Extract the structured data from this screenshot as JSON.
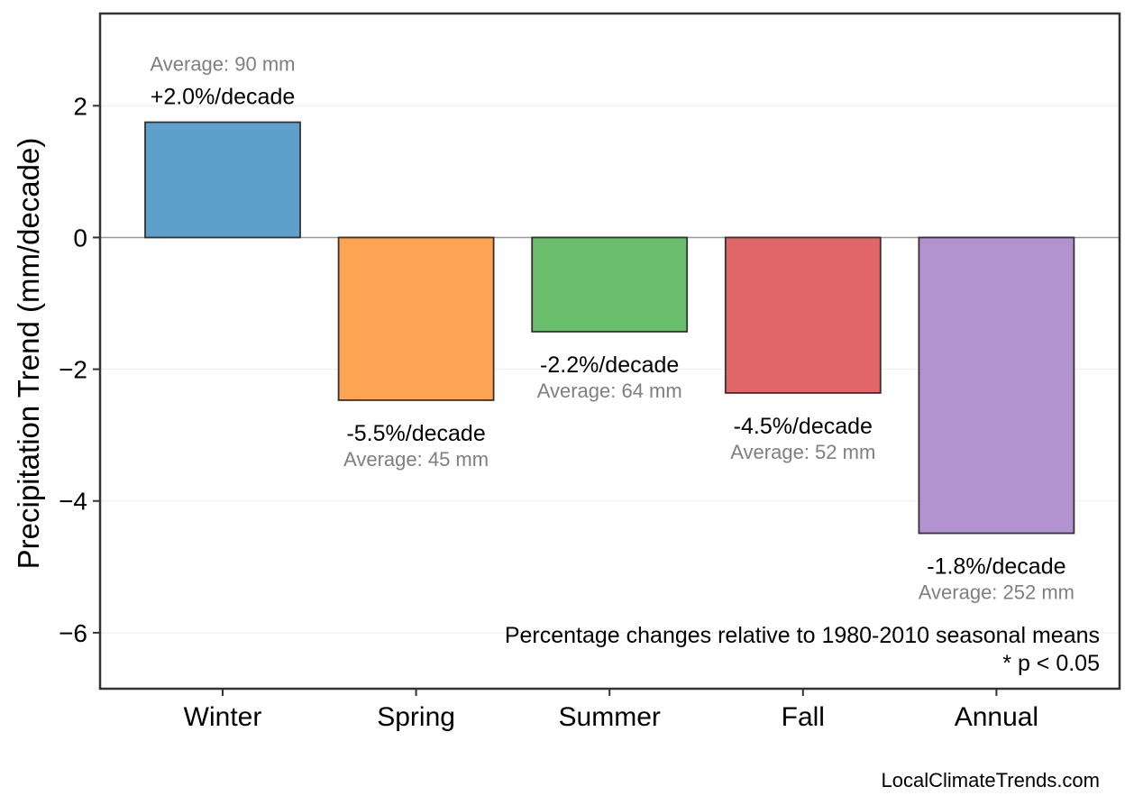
{
  "chart_data": {
    "type": "bar",
    "title": "",
    "xlabel": "",
    "ylabel": "Precipitation Trend (mm/decade)",
    "ylim": [
      -6.85,
      3.4
    ],
    "yticks": [
      2,
      0,
      -2,
      -4,
      -6
    ],
    "ytick_labels": [
      "2",
      "0",
      "−2",
      "−4",
      "−6"
    ],
    "grid": "horizontal, faint",
    "categories": [
      "Winter",
      "Spring",
      "Summer",
      "Fall",
      "Annual"
    ],
    "values": [
      1.75,
      -2.47,
      -1.43,
      -2.36,
      -4.49
    ],
    "colors": [
      "#5f9fcc",
      "#fea555",
      "#6abd6a",
      "#e06668",
      "#b293cf"
    ],
    "pct_labels": [
      "+2.0%/decade",
      "-5.5%/decade",
      "-2.2%/decade",
      "-4.5%/decade",
      "-1.8%/decade"
    ],
    "avg_labels": [
      "Average: 90 mm",
      "Average: 45 mm",
      "Average: 64 mm",
      "Average: 52 mm",
      "Average: 252 mm"
    ],
    "annotations": [
      "Percentage changes relative to 1980-2010 seasonal means",
      "* p < 0.05"
    ],
    "source": "LocalClimateTrends.com"
  }
}
